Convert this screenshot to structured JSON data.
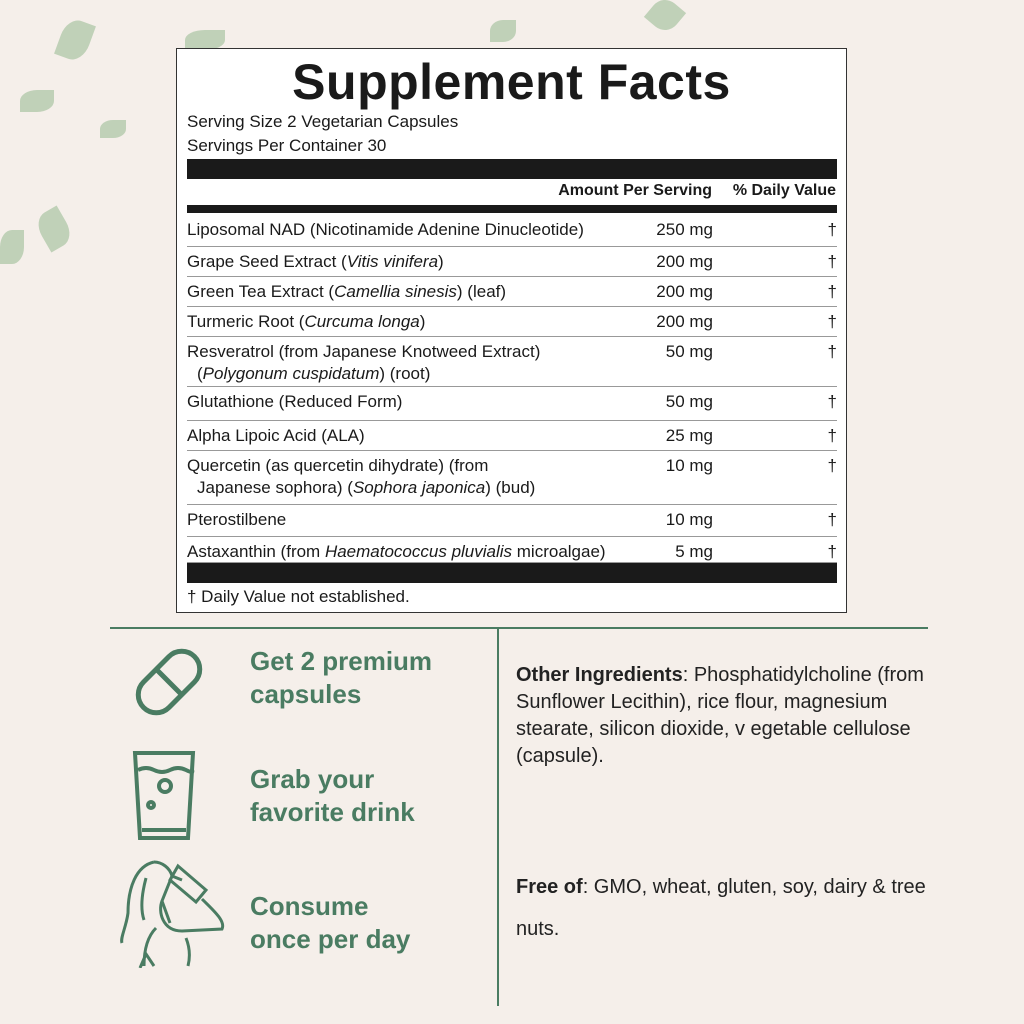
{
  "facts": {
    "title": "Supplement Facts",
    "serving_size": "Serving Size 2 Vegetarian Capsules",
    "servings_per_container": "Servings Per Container 30",
    "col_amount": "Amount Per Serving",
    "col_dv": "% Daily Value",
    "rows": [
      {
        "name": "Liposomal NAD (Nicotinamide Adenine Dinucleotide)",
        "amount": "250 mg",
        "dv": "†"
      },
      {
        "name": "Grape Seed Extract (Vitis vinifera)",
        "amount": "200 mg",
        "dv": "†"
      },
      {
        "name": "Green Tea Extract (Camellia sinesis) (leaf)",
        "amount": "200 mg",
        "dv": "†"
      },
      {
        "name": "Turmeric Root (Curcuma longa)",
        "amount": "200 mg",
        "dv": "†"
      },
      {
        "name": "Resveratrol (from Japanese Knotweed Extract)",
        "name2": "(Polygonum cuspidatum) (root)",
        "amount": "50 mg",
        "dv": "†"
      },
      {
        "name": "Glutathione (Reduced Form)",
        "amount": "50 mg",
        "dv": "†"
      },
      {
        "name": "Alpha Lipoic Acid (ALA)",
        "amount": "25 mg",
        "dv": "†"
      },
      {
        "name": "Quercetin (as quercetin dihydrate) (from",
        "name2": "Japanese sophora) (Sophora japonica) (bud)",
        "amount": "10 mg",
        "dv": "†"
      },
      {
        "name": "Pterostilbene",
        "amount": "10 mg",
        "dv": "†"
      },
      {
        "name": "Astaxanthin (from Haematococcus pluvialis microalgae)",
        "amount": "5 mg",
        "dv": "†"
      }
    ],
    "footnote": "† Daily Value not established."
  },
  "steps": [
    {
      "line1": "Get 2 premium",
      "line2": "capsules",
      "icon": "capsule-icon"
    },
    {
      "line1": "Grab your",
      "line2": "favorite drink",
      "icon": "glass-icon"
    },
    {
      "line1": "Consume",
      "line2": "once per day",
      "icon": "person-drinking-icon"
    }
  ],
  "other": {
    "label": "Other Ingredients",
    "text": ": Phosphatidylcholine (from Sunflower Lecithin), rice flour, magnesium stearate, silicon dioxide, v egetable cellulose (capsule)."
  },
  "free": {
    "label": "Free of",
    "text": ": GMO, wheat, gluten, soy, dairy & tree nuts."
  },
  "colors": {
    "accent": "#4a7c62",
    "background": "#f5efea"
  }
}
